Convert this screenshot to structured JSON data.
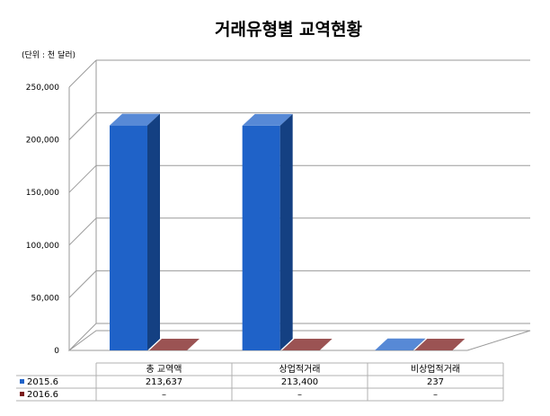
{
  "chart_data": {
    "type": "bar",
    "title": "거래유형별  교역현황",
    "unit_label": "(단위 : 천 달러)",
    "categories": [
      "총 교역액",
      "상업적거래",
      "비상업적거래"
    ],
    "series": [
      {
        "name": "2015.6",
        "values": [
          213637,
          213400,
          237
        ],
        "labels": [
          "213,637",
          "213,400",
          "237"
        ],
        "color": "#1f62c8"
      },
      {
        "name": "2016.6",
        "values": [
          0,
          0,
          0
        ],
        "labels": [
          "–",
          "–",
          "–"
        ],
        "color": "#7a1a1a"
      }
    ],
    "ylim": [
      0,
      250000
    ],
    "yticks": [
      0,
      50000,
      100000,
      150000,
      200000,
      250000
    ],
    "ytick_labels": [
      "0",
      "50,000",
      "100,000",
      "150,000",
      "200,000",
      "250,000"
    ],
    "grid": true,
    "legend": "bottom-left table",
    "data_table": true
  }
}
